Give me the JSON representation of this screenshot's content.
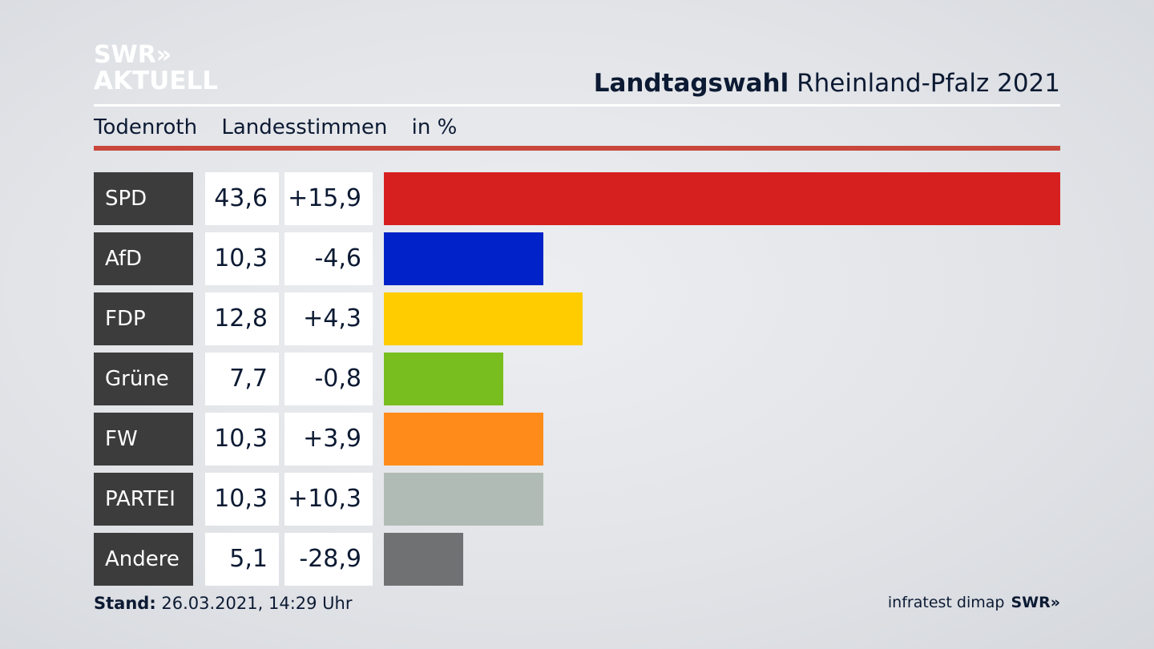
{
  "logo": {
    "line1": "SWR»",
    "line2": "AKTUELL"
  },
  "header": {
    "title_bold": "Landtagswahl",
    "title_rest": " Rheinland-Pfalz 2021"
  },
  "subheader": {
    "place": "Todenroth",
    "measure": "Landesstimmen",
    "unit": "in %"
  },
  "footer": {
    "stand_label": "Stand:",
    "stand_value": " 26.03.2021, 14:29 Uhr",
    "source": "infratest dimap",
    "brand": "SWR»"
  },
  "chart_data": {
    "type": "bar",
    "orientation": "horizontal",
    "categories": [
      "SPD",
      "AfD",
      "FDP",
      "Grüne",
      "FW",
      "PARTEI",
      "Andere"
    ],
    "values": [
      43.6,
      10.3,
      12.8,
      7.7,
      10.3,
      10.3,
      5.1
    ],
    "value_labels": [
      "43,6",
      "10,3",
      "12,8",
      "7,7",
      "10,3",
      "10,3",
      "5,1"
    ],
    "changes": [
      "+15,9",
      "-4,6",
      "+4,3",
      "-0,8",
      "+3,9",
      "+10,3",
      "-28,9"
    ],
    "colors": [
      "#d62020",
      "#0022c8",
      "#ffcc00",
      "#78be1e",
      "#ff8c1a",
      "#b1bbb5",
      "#707173"
    ],
    "xlim": [
      0,
      43.6
    ],
    "grid": false
  }
}
